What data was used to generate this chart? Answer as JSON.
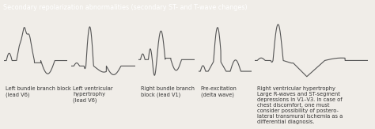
{
  "title": "Secondary repolarization abnormalities (secondary ST- and T-wave changes)",
  "title_bg": "#3bb8be",
  "title_color": "#ffffff",
  "bg_color": "#f0ede8",
  "waveform_color": "#555555",
  "labels": [
    "Left bundle branch block\n(lead V6)",
    "Left ventricular\nhypertrophy\n(lead V6)",
    "Right bundle branch\nblock (lead V1)",
    "Pre-excitation\n(delta wave)",
    "Right ventricular hypertrophy\nLarge R-waves and ST-segment\ndepressions in V1–V3. In case of\nchest discomfort, one must\nconsider possibility of postero-\nlateral transmural ischemia as a\ndifferential diagnosis."
  ],
  "label_fontsize": 4.8,
  "waveform_lw": 0.8,
  "title_fontsize": 5.8
}
